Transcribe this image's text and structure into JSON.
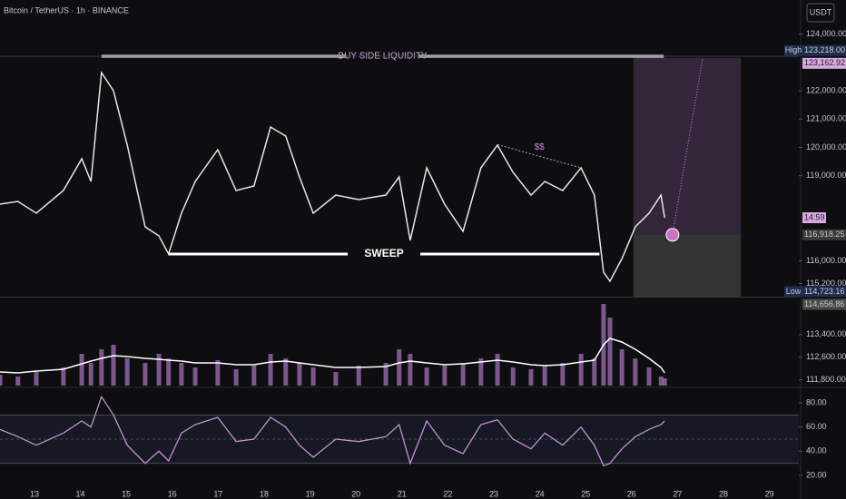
{
  "chart_data": [
    {
      "type": "line",
      "title": "Bitcoin / TetherUS · 1h · BINANCE",
      "currency": "USDT",
      "xlim": [
        12.25,
        29.64
      ],
      "ylim": [
        111600,
        125200
      ],
      "x": [
        12.25,
        12.64,
        13.04,
        13.63,
        14.03,
        14.23,
        14.46,
        14.72,
        15.02,
        15.41,
        15.71,
        15.92,
        16.2,
        16.5,
        16.99,
        17.39,
        17.78,
        18.14,
        18.47,
        18.77,
        19.07,
        19.56,
        20.06,
        20.65,
        20.94,
        21.18,
        21.54,
        21.93,
        22.33,
        22.72,
        23.08,
        23.42,
        23.81,
        24.11,
        24.5,
        24.9,
        25.19,
        25.39,
        25.53,
        25.79,
        26.08,
        26.38,
        26.64,
        26.72
      ],
      "series": [
        {
          "color": "#e6e6e6",
          "values": [
            118000,
            118096,
            117680,
            118480,
            119600,
            118800,
            122640,
            122000,
            120080,
            117200,
            116880,
            116240,
            117680,
            118800,
            119920,
            118480,
            118640,
            120720,
            120400,
            118960,
            117680,
            118320,
            118160,
            118320,
            118960,
            116720,
            119280,
            118000,
            117040,
            119280,
            120080,
            119120,
            118320,
            118800,
            118480,
            119280,
            118320,
            115600,
            115280,
            116080,
            117200,
            117680,
            118320,
            117520
          ]
        }
      ],
      "yticks": [
        {
          "value": 124000,
          "label": "124,000.00"
        },
        {
          "value": 122000,
          "label": "122,000.00"
        },
        {
          "value": 121000,
          "label": "121,000.00"
        },
        {
          "value": 120000,
          "label": "120,000.00"
        },
        {
          "value": 119000,
          "label": "119,000.00"
        },
        {
          "value": 116000,
          "label": "116,000.00"
        },
        {
          "value": 115200,
          "label": "115,200.00"
        },
        {
          "value": 113400,
          "label": "113,400.00"
        },
        {
          "value": 112600,
          "label": "112,600.00"
        },
        {
          "value": 111800,
          "label": "111,800.00"
        }
      ],
      "price_labels": [
        {
          "value": 123218,
          "label": "123,218.00",
          "tag": "High",
          "color": "#1e2c4f"
        },
        {
          "value": 123162.92,
          "label": "123,162.92",
          "color": "#d8a8e2"
        },
        {
          "value": 116918.25,
          "label": "116,918.25",
          "color": "#3a3a3a"
        },
        {
          "value": 114723.16,
          "label": "114,723.16",
          "tag": "Low",
          "color": "#1e2c4f"
        },
        {
          "value": 114656.86,
          "label": "114,656.86",
          "color": "#4a4a4a"
        }
      ],
      "countdown": "14:59",
      "annotations": [
        {
          "text": "BUY SIDE LIQUIDITY",
          "x": [
            14.46,
            26.7
          ],
          "y": [
            123218,
            123218
          ],
          "color": "#d8a8e2"
        },
        {
          "text": "SWEEP",
          "x": [
            15.92,
            25.3
          ],
          "y": [
            116240,
            116240
          ],
          "color": "#ffffff"
        },
        {
          "text": "$$",
          "x": [
            23.08,
            24.9
          ],
          "y": [
            120100,
            119280
          ],
          "color": "#c58fd6"
        }
      ],
      "position": {
        "x": [
          26.04,
          28.38
        ],
        "target": 123162.92,
        "entry": 116918.25,
        "stop": 114723.16,
        "marker_x": 26.89,
        "arrow_to_x": 27.55
      }
    },
    {
      "type": "bar",
      "xlim": [
        12.25,
        29.64
      ],
      "ylim": [
        0,
        100
      ],
      "color": "#a070b8",
      "average_color": "#ffffff",
      "x": [
        12.25,
        12.64,
        13.04,
        13.63,
        14.03,
        14.23,
        14.46,
        14.72,
        15.02,
        15.41,
        15.71,
        15.92,
        16.2,
        16.5,
        16.99,
        17.39,
        17.78,
        18.14,
        18.47,
        18.77,
        19.07,
        19.56,
        20.06,
        20.65,
        20.94,
        21.18,
        21.54,
        21.93,
        22.33,
        22.72,
        23.08,
        23.42,
        23.81,
        24.11,
        24.5,
        24.9,
        25.19,
        25.39,
        25.53,
        25.79,
        26.08,
        26.38,
        26.64,
        26.72
      ],
      "values": [
        12,
        10,
        15,
        20,
        35,
        25,
        40,
        45,
        30,
        25,
        35,
        30,
        25,
        20,
        28,
        18,
        22,
        35,
        30,
        25,
        20,
        15,
        22,
        25,
        40,
        35,
        20,
        22,
        25,
        30,
        35,
        20,
        18,
        22,
        25,
        35,
        30,
        90,
        75,
        40,
        30,
        20,
        10,
        8
      ],
      "average": [
        15,
        14,
        16,
        18,
        24,
        27,
        30,
        33,
        32,
        30,
        29,
        28,
        27,
        25,
        25,
        23,
        23,
        26,
        27,
        25,
        23,
        20,
        20,
        21,
        25,
        27,
        25,
        23,
        24,
        26,
        28,
        26,
        23,
        22,
        23,
        26,
        28,
        45,
        52,
        48,
        40,
        30,
        20,
        14
      ]
    },
    {
      "type": "line",
      "xlim": [
        12.25,
        29.64
      ],
      "ylim": [
        8,
        90.5
      ],
      "band": [
        30,
        70
      ],
      "midline": 50,
      "x": [
        12.25,
        12.64,
        13.04,
        13.63,
        14.03,
        14.23,
        14.46,
        14.72,
        15.02,
        15.41,
        15.71,
        15.92,
        16.2,
        16.5,
        16.99,
        17.39,
        17.78,
        18.14,
        18.47,
        18.77,
        19.07,
        19.56,
        20.06,
        20.65,
        20.94,
        21.18,
        21.54,
        21.93,
        22.33,
        22.72,
        23.08,
        23.42,
        23.81,
        24.11,
        24.5,
        24.9,
        25.19,
        25.39,
        25.53,
        25.79,
        26.08,
        26.38,
        26.64,
        26.72
      ],
      "series": [
        {
          "color": "#c58fd6",
          "values": [
            58,
            52,
            45,
            55,
            65,
            60,
            85,
            70,
            45,
            30,
            40,
            32,
            55,
            62,
            68,
            48,
            50,
            68,
            60,
            45,
            35,
            50,
            48,
            52,
            62,
            30,
            65,
            45,
            38,
            62,
            66,
            50,
            42,
            55,
            45,
            60,
            45,
            28,
            30,
            42,
            52,
            58,
            62,
            65
          ]
        }
      ],
      "yticks": [
        {
          "value": 80,
          "label": "80.00"
        },
        {
          "value": 60,
          "label": "60.00"
        },
        {
          "value": 40,
          "label": "40.00"
        },
        {
          "value": 20,
          "label": "20.00"
        }
      ],
      "xticks": [
        13,
        14,
        15,
        16,
        17,
        18,
        19,
        20,
        21,
        22,
        23,
        24,
        25,
        26,
        27,
        28,
        29
      ]
    }
  ]
}
